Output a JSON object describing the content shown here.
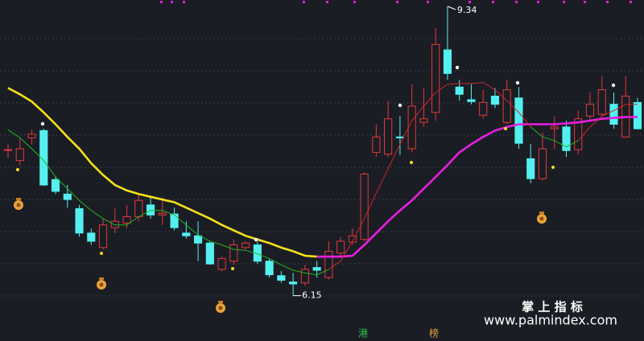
{
  "chart_data": {
    "type": "candlestick",
    "ylim": [
      5.65,
      9.41
    ],
    "up_color": "#e03a3a",
    "down_color": "#54f0f0",
    "open": [
      7.75,
      7.64,
      7.89,
      7.97,
      7.43,
      7.27,
      7.11,
      6.84,
      6.68,
      6.9,
      6.95,
      7.02,
      7.15,
      7.04,
      7.05,
      6.84,
      6.81,
      6.73,
      6.44,
      6.53,
      6.68,
      6.71,
      6.53,
      6.37,
      6.3,
      6.29,
      6.46,
      6.35,
      6.62,
      6.74,
      6.77,
      7.73,
      7.71,
      7.9,
      7.77,
      8.06,
      8.17,
      8.86,
      8.45,
      8.31,
      8.14,
      8.35,
      8.06,
      8.33,
      7.66,
      7.44,
      7.99,
      8.01,
      7.76,
      8.13,
      8.15,
      8.26,
      7.9,
      8.28
    ],
    "high": [
      7.82,
      7.89,
      7.98,
      7.99,
      7.46,
      7.37,
      7.15,
      6.89,
      7.0,
      7.11,
      7.15,
      7.28,
      7.24,
      7.24,
      7.12,
      6.97,
      6.97,
      6.75,
      6.58,
      6.77,
      6.75,
      6.75,
      6.56,
      6.42,
      6.4,
      6.49,
      6.53,
      6.75,
      6.8,
      6.89,
      7.51,
      8.04,
      8.3,
      8.13,
      8.48,
      8.44,
      9.1,
      9.34,
      8.53,
      8.48,
      8.42,
      8.44,
      8.53,
      8.45,
      7.82,
      7.95,
      8.13,
      8.08,
      8.19,
      8.39,
      8.57,
      8.39,
      8.57,
      8.33
    ],
    "low": [
      7.67,
      7.59,
      7.82,
      7.36,
      7.27,
      7.12,
      6.8,
      6.71,
      6.66,
      6.84,
      6.89,
      6.97,
      7.0,
      6.93,
      6.87,
      6.78,
      6.53,
      6.49,
      6.42,
      6.49,
      6.66,
      6.5,
      6.35,
      6.29,
      6.15,
      6.26,
      6.35,
      6.33,
      6.58,
      6.71,
      6.75,
      7.68,
      7.68,
      7.7,
      7.73,
      8.01,
      8.08,
      8.53,
      8.3,
      8.26,
      8.1,
      8.22,
      8.04,
      7.77,
      7.39,
      7.42,
      7.77,
      7.68,
      7.71,
      8.08,
      8.13,
      7.99,
      7.89,
      7.98
    ],
    "close": [
      7.76,
      7.77,
      7.93,
      7.37,
      7.3,
      7.21,
      6.84,
      6.75,
      6.93,
      6.97,
      7.02,
      7.2,
      7.04,
      7.06,
      6.9,
      6.81,
      6.73,
      6.5,
      6.56,
      6.71,
      6.73,
      6.53,
      6.38,
      6.32,
      6.28,
      6.44,
      6.43,
      6.64,
      6.75,
      6.81,
      7.49,
      7.9,
      8.1,
      7.89,
      8.24,
      8.1,
      8.92,
      8.6,
      8.37,
      8.29,
      8.28,
      8.26,
      8.42,
      7.83,
      7.44,
      7.77,
      8.01,
      7.75,
      8.1,
      8.26,
      8.42,
      8.04,
      8.35,
      7.99
    ],
    "series": [
      {
        "color": "#f5e11a",
        "values": [
          8.44,
          8.37,
          8.29,
          8.17,
          8.04,
          7.9,
          7.77,
          7.61,
          7.48,
          7.37,
          7.31,
          7.27,
          7.24,
          7.21,
          7.18,
          7.12,
          7.06,
          7.0,
          6.93,
          6.87,
          6.81,
          6.77,
          6.73,
          6.68,
          6.64,
          6.59,
          6.58,
          null,
          null,
          null,
          null,
          null,
          null,
          null,
          null,
          null,
          null,
          null,
          null,
          null,
          null,
          null,
          null,
          null,
          null,
          null,
          null,
          null,
          null,
          null,
          null,
          null,
          null,
          null
        ]
      },
      {
        "color": "#e81ee0",
        "values": [
          null,
          null,
          null,
          null,
          null,
          null,
          null,
          null,
          null,
          null,
          null,
          null,
          null,
          null,
          null,
          null,
          null,
          null,
          null,
          null,
          null,
          null,
          null,
          null,
          null,
          null,
          6.58,
          6.58,
          6.58,
          6.59,
          6.71,
          6.84,
          6.97,
          7.09,
          7.2,
          7.33,
          7.46,
          7.59,
          7.73,
          7.82,
          7.9,
          7.97,
          8.01,
          8.04,
          8.04,
          8.04,
          8.04,
          8.05,
          8.06,
          8.08,
          8.1,
          8.11,
          8.12,
          8.12
        ]
      },
      {
        "color": "#1fb51f",
        "values": [
          7.98,
          7.89,
          7.77,
          7.64,
          7.46,
          7.33,
          7.2,
          7.09,
          7.0,
          6.93,
          6.93,
          7.02,
          7.09,
          7.09,
          7.04,
          6.93,
          6.82,
          6.75,
          6.71,
          6.66,
          6.65,
          6.61,
          6.56,
          6.49,
          6.43,
          6.4,
          6.38,
          6.44,
          null,
          null,
          null,
          null,
          null,
          null,
          null,
          null,
          null,
          null,
          null,
          null,
          null,
          null,
          null,
          null,
          8.01,
          7.9,
          7.86,
          7.79,
          7.86,
          null,
          null,
          null,
          null,
          null
        ]
      },
      {
        "color": "#d0262a",
        "values": [
          null,
          null,
          null,
          null,
          null,
          null,
          null,
          null,
          null,
          null,
          null,
          null,
          null,
          null,
          null,
          null,
          null,
          null,
          null,
          null,
          null,
          null,
          null,
          null,
          null,
          null,
          null,
          6.44,
          6.53,
          6.75,
          7.0,
          7.28,
          7.55,
          7.82,
          8.08,
          8.24,
          8.39,
          8.48,
          8.49,
          8.49,
          8.5,
          8.42,
          8.3,
          8.17,
          8.01,
          null,
          null,
          null,
          7.86,
          8.01,
          8.13,
          8.19,
          8.26,
          8.26
        ]
      }
    ]
  },
  "watermark": {
    "title": "掌 上 指 标",
    "url": "www.palmindex.com"
  },
  "badges": [
    "港",
    "榜"
  ]
}
